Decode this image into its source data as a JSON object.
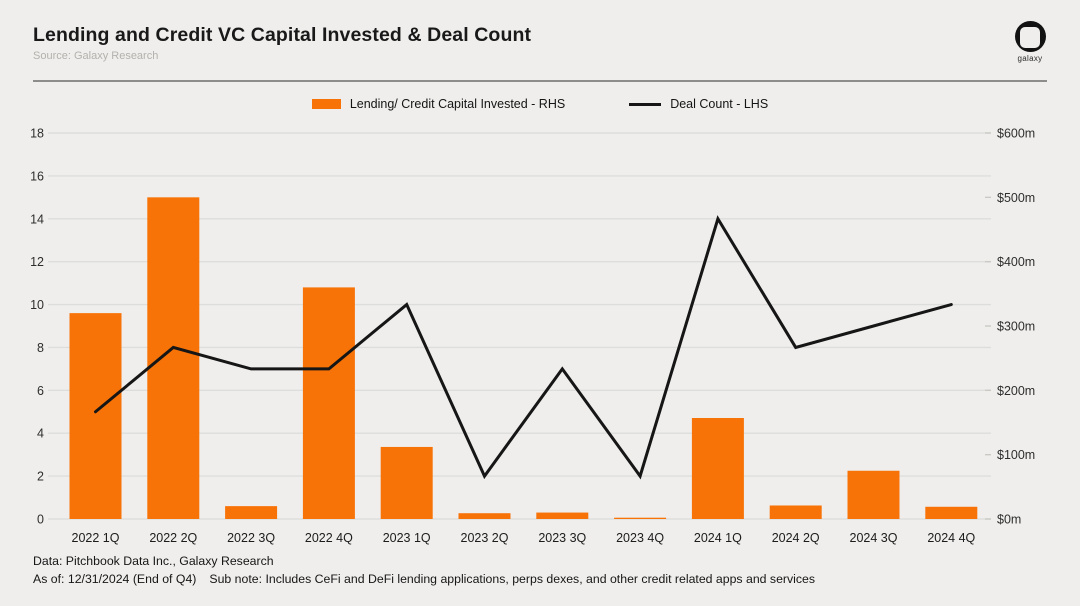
{
  "header": {
    "title": "Lending and Credit VC Capital Invested & Deal Count",
    "source": "Source: Galaxy Research",
    "logo_text": "galaxy"
  },
  "legend": [
    {
      "label": "Lending/ Credit Capital Invested - RHS",
      "swatch": "bar-swatch",
      "color": "#f87307"
    },
    {
      "label": "Deal Count - LHS",
      "swatch": "line-swatch",
      "color": "#161616"
    }
  ],
  "chart_data": {
    "type": "bar",
    "subtype": "bar+line combo",
    "categories": [
      "2022 1Q",
      "2022 2Q",
      "2022 3Q",
      "2022 4Q",
      "2023 1Q",
      "2023 2Q",
      "2023 3Q",
      "2023 4Q",
      "2024 1Q",
      "2024 2Q",
      "2024 3Q",
      "2024 4Q"
    ],
    "series": [
      {
        "name": "Lending/ Credit Capital Invested - RHS",
        "type": "bar",
        "axis": "right",
        "unit": "$m",
        "color": "#f87307",
        "values": [
          320,
          500,
          20,
          360,
          112,
          9,
          10,
          2,
          157,
          21,
          75,
          19
        ]
      },
      {
        "name": "Deal Count - LHS",
        "type": "line",
        "axis": "left",
        "unit": "deals",
        "color": "#161616",
        "values": [
          5,
          8,
          7,
          7,
          10,
          2,
          7,
          2,
          14,
          8,
          9,
          10
        ]
      }
    ],
    "left_axis": {
      "min": 0,
      "max": 18,
      "ticks": [
        "0",
        "2",
        "4",
        "6",
        "8",
        "10",
        "12",
        "14",
        "16",
        "18"
      ]
    },
    "right_axis": {
      "min": 0,
      "max": 600,
      "ticks": [
        "$0m",
        "$100m",
        "$200m",
        "$300m",
        "$400m",
        "$500m",
        "$600m"
      ]
    },
    "grid": true,
    "legend_position": "top-center",
    "title": "Lending and Credit VC Capital Invested & Deal Count"
  },
  "footer": {
    "line1": "Data: Pitchbook Data Inc., Galaxy Research",
    "as_of": "As of: 12/31/2024 (End of Q4)",
    "sub_note": "Sub note: Includes CeFi and DeFi lending applications, perps dexes, and other credit related apps and services"
  },
  "colors": {
    "background": "#efeeec",
    "bar": "#f87307",
    "line": "#161616",
    "gridline": "#dddddb",
    "title": "#191919",
    "subtitle": "#b2b1ad"
  }
}
